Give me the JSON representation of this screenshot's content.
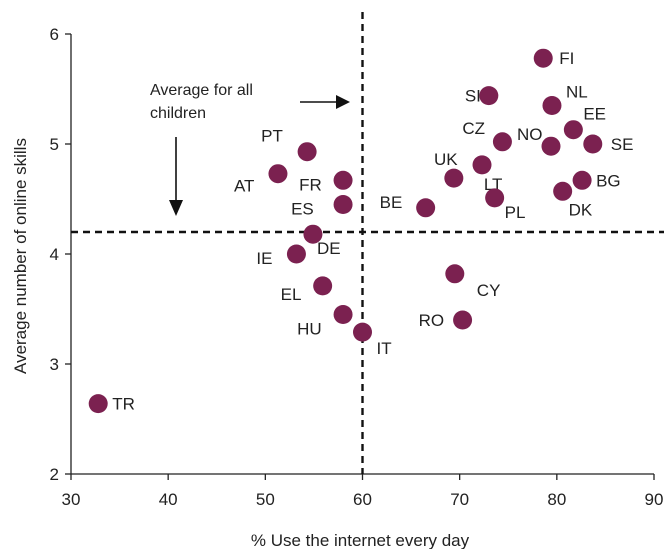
{
  "chart_data": {
    "type": "scatter",
    "xlabel": "% Use the internet every day",
    "ylabel": "Average number of online skills",
    "xlim": [
      30,
      90
    ],
    "ylim": [
      2,
      6
    ],
    "xticks": [
      30,
      40,
      50,
      60,
      70,
      80,
      90
    ],
    "yticks": [
      2,
      3,
      4,
      5,
      6
    ],
    "grid": false,
    "marker_color": "#7b2150",
    "reference_lines": {
      "x": 60,
      "y": 4.2,
      "style": "dashed"
    },
    "annotations": {
      "horizontal_line_label_line1": "Average for all",
      "horizontal_line_label_line2": "children"
    },
    "points": [
      {
        "label": "FI",
        "x": 78.6,
        "y": 5.78
      },
      {
        "label": "SI",
        "x": 73.0,
        "y": 5.44
      },
      {
        "label": "NL",
        "x": 79.5,
        "y": 5.35
      },
      {
        "label": "EE",
        "x": 81.7,
        "y": 5.13
      },
      {
        "label": "CZ",
        "x": 74.4,
        "y": 5.02
      },
      {
        "label": "SE",
        "x": 83.7,
        "y": 5.0
      },
      {
        "label": "NO",
        "x": 79.4,
        "y": 4.98
      },
      {
        "label": "PT",
        "x": 54.3,
        "y": 4.93
      },
      {
        "label": "UK",
        "x": 72.3,
        "y": 4.81
      },
      {
        "label": "AT",
        "x": 51.3,
        "y": 4.73
      },
      {
        "label": "LT",
        "x": 69.4,
        "y": 4.69
      },
      {
        "label": "FR",
        "x": 58.0,
        "y": 4.67
      },
      {
        "label": "BG",
        "x": 82.6,
        "y": 4.67
      },
      {
        "label": "DK",
        "x": 80.6,
        "y": 4.57
      },
      {
        "label": "PL",
        "x": 73.6,
        "y": 4.51
      },
      {
        "label": "ES",
        "x": 58.0,
        "y": 4.45
      },
      {
        "label": "BE",
        "x": 66.5,
        "y": 4.42
      },
      {
        "label": "DE",
        "x": 54.9,
        "y": 4.18
      },
      {
        "label": "IE",
        "x": 53.2,
        "y": 4.0
      },
      {
        "label": "CY",
        "x": 69.5,
        "y": 3.82
      },
      {
        "label": "EL",
        "x": 55.9,
        "y": 3.71
      },
      {
        "label": "HU",
        "x": 58.0,
        "y": 3.45
      },
      {
        "label": "RO",
        "x": 70.3,
        "y": 3.4
      },
      {
        "label": "IT",
        "x": 60.0,
        "y": 3.29
      },
      {
        "label": "TR",
        "x": 32.8,
        "y": 2.64
      }
    ]
  }
}
